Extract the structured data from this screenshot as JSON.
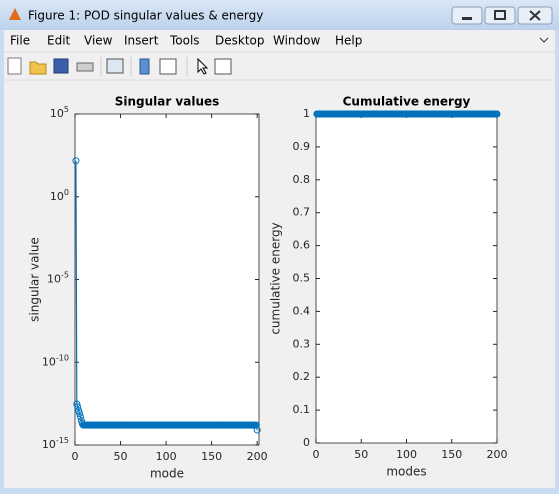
{
  "window": {
    "title": "Figure 1: POD singular values & energy",
    "menu": [
      "File",
      "Edit",
      "View",
      "Insert",
      "Tools",
      "Desktop",
      "Window",
      "Help"
    ]
  },
  "chart_data": [
    {
      "type": "line",
      "title": "Singular values",
      "xlabel": "mode",
      "ylabel": "singular value",
      "yscale": "log",
      "marker": "circle",
      "color": "#0072bd",
      "xlim": [
        0,
        202
      ],
      "xticks": [
        0,
        50,
        100,
        150,
        200
      ],
      "ylim": [
        1e-15,
        100000
      ],
      "yticks": [
        {
          "value": 1e-15,
          "label": "10^-15"
        },
        {
          "value": 1e-10,
          "label": "10^-10"
        },
        {
          "value": 1e-05,
          "label": "10^-5"
        },
        {
          "value": 1,
          "label": "10^0"
        },
        {
          "value": 100000,
          "label": "10^5"
        }
      ],
      "x": [
        1,
        2,
        3,
        4,
        5,
        6,
        7,
        8,
        9,
        10,
        11,
        12,
        13,
        14,
        15,
        16,
        17,
        18,
        19,
        20,
        21,
        22,
        23,
        24,
        25,
        26,
        27,
        28,
        29,
        30,
        31,
        32,
        33,
        34,
        35,
        36,
        37,
        38,
        39,
        40,
        41,
        42,
        43,
        44,
        45,
        46,
        47,
        48,
        49,
        50,
        51,
        52,
        53,
        54,
        55,
        56,
        57,
        58,
        59,
        60,
        61,
        62,
        63,
        64,
        65,
        66,
        67,
        68,
        69,
        70,
        71,
        72,
        73,
        74,
        75,
        76,
        77,
        78,
        79,
        80,
        81,
        82,
        83,
        84,
        85,
        86,
        87,
        88,
        89,
        90,
        91,
        92,
        93,
        94,
        95,
        96,
        97,
        98,
        99,
        100,
        101,
        102,
        103,
        104,
        105,
        106,
        107,
        108,
        109,
        110,
        111,
        112,
        113,
        114,
        115,
        116,
        117,
        118,
        119,
        120,
        121,
        122,
        123,
        124,
        125,
        126,
        127,
        128,
        129,
        130,
        131,
        132,
        133,
        134,
        135,
        136,
        137,
        138,
        139,
        140,
        141,
        142,
        143,
        144,
        145,
        146,
        147,
        148,
        149,
        150,
        151,
        152,
        153,
        154,
        155,
        156,
        157,
        158,
        159,
        160,
        161,
        162,
        163,
        164,
        165,
        166,
        167,
        168,
        169,
        170,
        171,
        172,
        173,
        174,
        175,
        176,
        177,
        178,
        179,
        180,
        181,
        182,
        183,
        184,
        185,
        186,
        187,
        188,
        189,
        190,
        191,
        192,
        193,
        194,
        195,
        196,
        197,
        198,
        199,
        200
      ],
      "values": [
        150,
        3e-13,
        2e-13,
        1.2e-13,
        8e-14,
        5e-14,
        3e-14,
        2e-14,
        1.6e-14,
        1.6e-14,
        1.6e-14,
        1.6e-14,
        1.6e-14,
        1.6e-14,
        1.6e-14,
        1.6e-14,
        1.6e-14,
        1.6e-14,
        1.6e-14,
        1.6e-14,
        1.6e-14,
        1.6e-14,
        1.6e-14,
        1.6e-14,
        1.6e-14,
        1.6e-14,
        1.6e-14,
        1.6e-14,
        1.6e-14,
        1.6e-14,
        1.6e-14,
        1.6e-14,
        1.6e-14,
        1.6e-14,
        1.6e-14,
        1.6e-14,
        1.6e-14,
        1.6e-14,
        1.6e-14,
        1.6e-14,
        1.6e-14,
        1.6e-14,
        1.6e-14,
        1.6e-14,
        1.6e-14,
        1.6e-14,
        1.6e-14,
        1.6e-14,
        1.6e-14,
        1.6e-14,
        1.6e-14,
        1.6e-14,
        1.6e-14,
        1.6e-14,
        1.6e-14,
        1.6e-14,
        1.6e-14,
        1.6e-14,
        1.6e-14,
        1.6e-14,
        1.6e-14,
        1.6e-14,
        1.6e-14,
        1.6e-14,
        1.6e-14,
        1.6e-14,
        1.6e-14,
        1.6e-14,
        1.6e-14,
        1.6e-14,
        1.6e-14,
        1.6e-14,
        1.6e-14,
        1.6e-14,
        1.6e-14,
        1.6e-14,
        1.6e-14,
        1.6e-14,
        1.6e-14,
        1.6e-14,
        1.6e-14,
        1.6e-14,
        1.6e-14,
        1.6e-14,
        1.6e-14,
        1.6e-14,
        1.6e-14,
        1.6e-14,
        1.6e-14,
        1.6e-14,
        1.6e-14,
        1.6e-14,
        1.6e-14,
        1.6e-14,
        1.6e-14,
        1.6e-14,
        1.6e-14,
        1.6e-14,
        1.6e-14,
        1.6e-14,
        1.6e-14,
        1.6e-14,
        1.6e-14,
        1.6e-14,
        1.6e-14,
        1.6e-14,
        1.6e-14,
        1.6e-14,
        1.6e-14,
        1.6e-14,
        1.6e-14,
        1.6e-14,
        1.6e-14,
        1.6e-14,
        1.6e-14,
        1.6e-14,
        1.6e-14,
        1.6e-14,
        1.6e-14,
        1.6e-14,
        1.6e-14,
        1.6e-14,
        1.6e-14,
        1.6e-14,
        1.6e-14,
        1.6e-14,
        1.6e-14,
        1.6e-14,
        1.6e-14,
        1.6e-14,
        1.6e-14,
        1.6e-14,
        1.6e-14,
        1.6e-14,
        1.6e-14,
        1.6e-14,
        1.6e-14,
        1.6e-14,
        1.6e-14,
        1.6e-14,
        1.6e-14,
        1.6e-14,
        1.6e-14,
        1.6e-14,
        1.6e-14,
        1.6e-14,
        1.6e-14,
        1.6e-14,
        1.6e-14,
        1.6e-14,
        1.6e-14,
        1.6e-14,
        1.6e-14,
        1.6e-14,
        1.6e-14,
        1.6e-14,
        1.6e-14,
        1.6e-14,
        1.6e-14,
        1.6e-14,
        1.6e-14,
        1.6e-14,
        1.6e-14,
        1.6e-14,
        1.6e-14,
        1.6e-14,
        1.6e-14,
        1.6e-14,
        1.6e-14,
        1.6e-14,
        1.6e-14,
        1.6e-14,
        1.6e-14,
        1.6e-14,
        1.6e-14,
        1.6e-14,
        1.6e-14,
        1.6e-14,
        1.6e-14,
        1.6e-14,
        1.6e-14,
        1.6e-14,
        1.6e-14,
        1.6e-14,
        1.6e-14,
        1.6e-14,
        1.6e-14,
        1.6e-14,
        1.6e-14,
        1.6e-14,
        1.6e-14,
        1.6e-14,
        1.6e-14,
        1.6e-14,
        1.6e-14,
        1.6e-14,
        1.6e-14,
        1.6e-14,
        1.6e-14,
        8e-15
      ]
    },
    {
      "type": "line",
      "title": "Cumulative energy",
      "xlabel": "modes",
      "ylabel": "cumulative energy",
      "yscale": "linear",
      "marker": "circle",
      "color": "#0072bd",
      "xlim": [
        0,
        200
      ],
      "xticks": [
        0,
        50,
        100,
        150,
        200
      ],
      "ylim": [
        0,
        1
      ],
      "yticks": [
        0,
        0.1,
        0.2,
        0.3,
        0.4,
        0.5,
        0.6,
        0.7,
        0.8,
        0.9,
        1
      ],
      "x": [
        1,
        2,
        3,
        4,
        5,
        6,
        7,
        8,
        9,
        10,
        11,
        12,
        13,
        14,
        15,
        16,
        17,
        18,
        19,
        20,
        21,
        22,
        23,
        24,
        25,
        26,
        27,
        28,
        29,
        30,
        31,
        32,
        33,
        34,
        35,
        36,
        37,
        38,
        39,
        40,
        41,
        42,
        43,
        44,
        45,
        46,
        47,
        48,
        49,
        50,
        51,
        52,
        53,
        54,
        55,
        56,
        57,
        58,
        59,
        60,
        61,
        62,
        63,
        64,
        65,
        66,
        67,
        68,
        69,
        70,
        71,
        72,
        73,
        74,
        75,
        76,
        77,
        78,
        79,
        80,
        81,
        82,
        83,
        84,
        85,
        86,
        87,
        88,
        89,
        90,
        91,
        92,
        93,
        94,
        95,
        96,
        97,
        98,
        99,
        100,
        101,
        102,
        103,
        104,
        105,
        106,
        107,
        108,
        109,
        110,
        111,
        112,
        113,
        114,
        115,
        116,
        117,
        118,
        119,
        120,
        121,
        122,
        123,
        124,
        125,
        126,
        127,
        128,
        129,
        130,
        131,
        132,
        133,
        134,
        135,
        136,
        137,
        138,
        139,
        140,
        141,
        142,
        143,
        144,
        145,
        146,
        147,
        148,
        149,
        150,
        151,
        152,
        153,
        154,
        155,
        156,
        157,
        158,
        159,
        160,
        161,
        162,
        163,
        164,
        165,
        166,
        167,
        168,
        169,
        170,
        171,
        172,
        173,
        174,
        175,
        176,
        177,
        178,
        179,
        180,
        181,
        182,
        183,
        184,
        185,
        186,
        187,
        188,
        189,
        190,
        191,
        192,
        193,
        194,
        195,
        196,
        197,
        198,
        199,
        200
      ],
      "values": [
        1,
        1,
        1,
        1,
        1,
        1,
        1,
        1,
        1,
        1,
        1,
        1,
        1,
        1,
        1,
        1,
        1,
        1,
        1,
        1,
        1,
        1,
        1,
        1,
        1,
        1,
        1,
        1,
        1,
        1,
        1,
        1,
        1,
        1,
        1,
        1,
        1,
        1,
        1,
        1,
        1,
        1,
        1,
        1,
        1,
        1,
        1,
        1,
        1,
        1,
        1,
        1,
        1,
        1,
        1,
        1,
        1,
        1,
        1,
        1,
        1,
        1,
        1,
        1,
        1,
        1,
        1,
        1,
        1,
        1,
        1,
        1,
        1,
        1,
        1,
        1,
        1,
        1,
        1,
        1,
        1,
        1,
        1,
        1,
        1,
        1,
        1,
        1,
        1,
        1,
        1,
        1,
        1,
        1,
        1,
        1,
        1,
        1,
        1,
        1,
        1,
        1,
        1,
        1,
        1,
        1,
        1,
        1,
        1,
        1,
        1,
        1,
        1,
        1,
        1,
        1,
        1,
        1,
        1,
        1,
        1,
        1,
        1,
        1,
        1,
        1,
        1,
        1,
        1,
        1,
        1,
        1,
        1,
        1,
        1,
        1,
        1,
        1,
        1,
        1,
        1,
        1,
        1,
        1,
        1,
        1,
        1,
        1,
        1,
        1,
        1,
        1,
        1,
        1,
        1,
        1,
        1,
        1,
        1,
        1,
        1,
        1,
        1,
        1,
        1,
        1,
        1,
        1,
        1,
        1,
        1,
        1,
        1,
        1,
        1,
        1,
        1,
        1,
        1,
        1,
        1,
        1,
        1,
        1,
        1,
        1,
        1,
        1,
        1,
        1,
        1,
        1,
        1,
        1,
        1,
        1,
        1,
        1,
        1,
        1
      ]
    }
  ]
}
